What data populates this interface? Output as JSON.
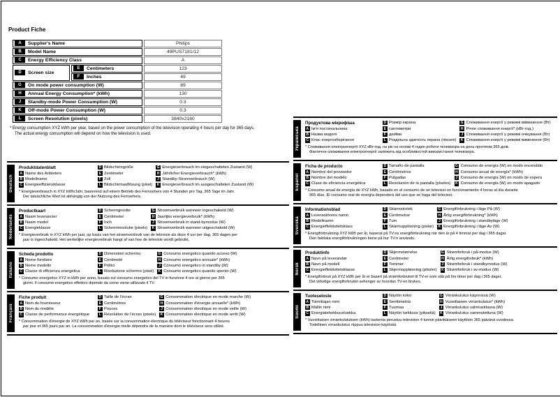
{
  "page": {
    "title": "Product Fiche"
  },
  "colors": {
    "ink": "#000000",
    "paper": "#ffffff",
    "badge_bg": "#000000",
    "badge_fg": "#ffffff",
    "value_border": "#7a7a7a"
  },
  "product_table": {
    "rows": [
      {
        "letter": "A",
        "label": "Supplier's Name",
        "value": "Philips"
      },
      {
        "letter": "B",
        "label": "Model Name",
        "value": "49PUS7181/12"
      },
      {
        "letter": "C",
        "label": "Energy Efficiency Class",
        "value": "A"
      },
      {
        "letter": "D",
        "label": "Screen size",
        "sub": [
          {
            "letter": "E",
            "label": "Centimeters",
            "value": "123"
          },
          {
            "letter": "F",
            "label": "Inches",
            "value": "49"
          }
        ]
      },
      {
        "letter": "G",
        "label": "On mode power consumption (W)",
        "value": "89"
      },
      {
        "letter": "H",
        "label": "Annual Energy Consumption* (kWh)",
        "value": "130"
      },
      {
        "letter": "J",
        "label": "Standby-mode Power Consumption (W)",
        "value": "0.3"
      },
      {
        "letter": "K",
        "label": "Off-mode Power Consumption (W)",
        "value": "0.3"
      },
      {
        "letter": "L",
        "label": "Screen Resolution (pixels)",
        "value": "3840x2160"
      }
    ]
  },
  "footnote": {
    "line1": "* Energy consumption XYZ kWh per year, based on the power consumption of the television operating 4 hours per day for 365 days.",
    "line2": "The actual energy consumption will depend on how the television is used."
  },
  "sections": {
    "left": [
      {
        "id": "deutsch",
        "lang": "Deutsch",
        "title": "Produktdatenblatt",
        "items_abc": [
          {
            "letter": "A",
            "label": "Name des Anbieters"
          },
          {
            "letter": "B",
            "label": "Modellname"
          },
          {
            "letter": "C",
            "label": "Energieeffizienzklasse"
          }
        ],
        "items_defl": [
          {
            "letter": "D",
            "label": "Bildschirmgröße"
          },
          {
            "letter": "E",
            "label": "Zentimeter"
          },
          {
            "letter": "F",
            "label": "Zoll"
          },
          {
            "letter": "L",
            "label": "Bildschirmauflösung (pixel)"
          }
        ],
        "items_ghjk": [
          {
            "letter": "G",
            "label": "Energieverbrauch im eingeschalteten Zustand (W)"
          },
          {
            "letter": "H",
            "label": "Jährlicher Energieverbrauch* (kWh)"
          },
          {
            "letter": "J",
            "label": "Standby-Stromverbrauch (W)"
          },
          {
            "letter": "K",
            "label": "Energieverbrauch im ausgeschalteten Zustand (W)"
          }
        ],
        "footnote": [
          "* Energieverbrauch in XYZ kWh/Jahr, basierend auf einem Betrieb des Fernsehers von 4 Stunden pro Tag, 365 Tage im Jahr.",
          "Der tatsächliche Wert ist abhängig von der Nutzung des Fernsehers."
        ]
      },
      {
        "id": "nederlands",
        "lang": "Nederlands",
        "title": "Productkaart",
        "items_abc": [
          {
            "letter": "A",
            "label": "Naam leverancier"
          },
          {
            "letter": "B",
            "label": "Naam model"
          },
          {
            "letter": "C",
            "label": "Energieklasse"
          }
        ],
        "items_defl": [
          {
            "letter": "D",
            "label": "Schermgrootte"
          },
          {
            "letter": "E",
            "label": "Centimeter"
          },
          {
            "letter": "F",
            "label": "Inch"
          },
          {
            "letter": "L",
            "label": "Schermresolutie (pixels)"
          }
        ],
        "items_ghjk": [
          {
            "letter": "G",
            "label": "Stroomverbruik wanneer ingeschakeld (W)"
          },
          {
            "letter": "H",
            "label": "Jaarlijks energieverbruik* (kWh)"
          },
          {
            "letter": "J",
            "label": "Stroomverbruik in stand-bymodus (W)"
          },
          {
            "letter": "K",
            "label": "Stroomverbruik wanneer uitgeschakeld (W)"
          }
        ],
        "footnote": [
          "* Energieverbruik in XYZ kWh per jaar, op basis van het stroomverbruik van de televisie als deze 4 uur per dag, 365 dagen per",
          "jaar is ingeschakeld. Het werkelijke energieverbruik hangt af van hoe de televisie wordt gebruikt."
        ]
      },
      {
        "id": "italiano",
        "lang": "Italiano",
        "title": "Scheda prodotto",
        "items_abc": [
          {
            "letter": "A",
            "label": "Nome fornitore"
          },
          {
            "letter": "B",
            "label": "Nome modello"
          },
          {
            "letter": "C",
            "label": "Classe di efficienza energetica"
          }
        ],
        "items_defl": [
          {
            "letter": "D",
            "label": "Dimensioni schermo"
          },
          {
            "letter": "E",
            "label": "Centimetri"
          },
          {
            "letter": "F",
            "label": "Pollici"
          },
          {
            "letter": "L",
            "label": "Risoluzione schermo (pixel)"
          }
        ],
        "items_ghjk": [
          {
            "letter": "G",
            "label": "Consumo energetico quando acceso (W)"
          },
          {
            "letter": "H",
            "label": "Consumo energetico annuale* (kWh)"
          },
          {
            "letter": "J",
            "label": "Consumo energetico in standby (W)"
          },
          {
            "letter": "K",
            "label": "Consumo energetico quando spento (W)"
          }
        ],
        "footnote": [
          "* Consumo energetico XYZ in kWh per anno, basato sul consumo energetico del TV in funzione 4 ore al giorno per 365",
          "giorni. Il consumo energetico effettivo dipende da come viene utilizzato il TV."
        ]
      },
      {
        "id": "francais",
        "lang": "Français",
        "title": "Fiche produit",
        "items_abc": [
          {
            "letter": "A",
            "label": "Nom du fournisseur"
          },
          {
            "letter": "B",
            "label": "Nom du modèle"
          },
          {
            "letter": "C",
            "label": "Classe de performance énergétique"
          }
        ],
        "items_defl": [
          {
            "letter": "D",
            "label": "Taille de l'écran"
          },
          {
            "letter": "E",
            "label": "Centimètres"
          },
          {
            "letter": "F",
            "label": "Pouces"
          },
          {
            "letter": "L",
            "label": "Résolution de l'écran (pixels)"
          }
        ],
        "items_ghjk": [
          {
            "letter": "G",
            "label": "Consommation électrique en mode marche (W)"
          },
          {
            "letter": "H",
            "label": "Consommation d'énergie annuelle* (kWh)"
          },
          {
            "letter": "J",
            "label": "Consommation électrique en mode veille (W)"
          },
          {
            "letter": "K",
            "label": "Consommation électrique en mode arrêt (W)"
          }
        ],
        "footnote": [
          "* Consommation d'énergie de XYZ kWh par an, basée sur la consommation électrique du téléviseur fonctionnant 4 heures",
          "par jour et 365 jours par an. La consommation d'énergie réelle dépendra de la manière dont le téléviseur sera utilisé."
        ]
      }
    ],
    "right": [
      {
        "id": "ukrainska",
        "lang": "Українська",
        "title": "Продуктова мікрофіша",
        "items_abc": [
          {
            "letter": "A",
            "label": "Ім'я постачальника"
          },
          {
            "letter": "B",
            "label": "Назва моделі"
          },
          {
            "letter": "C",
            "label": "Клас енергозберігання"
          }
        ],
        "items_defl": [
          {
            "letter": "D",
            "label": "Розмір екрана"
          },
          {
            "letter": "E",
            "label": "сантиметри"
          },
          {
            "letter": "F",
            "label": "дюйми"
          },
          {
            "letter": "L",
            "label": "Роздільна здатність екрана (пікселі)"
          }
        ],
        "items_ghjk": [
          {
            "letter": "G",
            "label": "Споживання енергії у режимі ввімкнення (Вт)"
          },
          {
            "letter": "H",
            "label": "Річне споживання енергії* (кВт-год.)"
          },
          {
            "letter": "J",
            "label": "Споживання енергії у режимі очікування (Вт)"
          },
          {
            "letter": "K",
            "label": "Споживання енергії у режимі вимкнення (Вт)"
          }
        ],
        "footnote": [
          "* Споживання електроенергії XYZ кВт-год. на рік на основі 4 годин роботи телевізора на день протягом 365 днів.",
          "Фактичне споживання електроенергії залежить від особливостей використання телевізора."
        ]
      },
      {
        "id": "espanol",
        "lang": "Español",
        "title": "Ficha de producto",
        "items_abc": [
          {
            "letter": "A",
            "label": "Nombre del proveedor"
          },
          {
            "letter": "B",
            "label": "Nombre del modelo"
          },
          {
            "letter": "C",
            "label": "Clase de eficiencia energética"
          }
        ],
        "items_defl": [
          {
            "letter": "D",
            "label": "Tamaño de pantalla"
          },
          {
            "letter": "E",
            "label": "Centímetros"
          },
          {
            "letter": "F",
            "label": "Pulgadas"
          },
          {
            "letter": "L",
            "label": "Resolución de la pantalla (píxeles)"
          }
        ],
        "items_ghjk": [
          {
            "letter": "G",
            "label": "Consumo de energía (W) en modo encendido"
          },
          {
            "letter": "H",
            "label": "Consumo anual de energía* (kWh)"
          },
          {
            "letter": "J",
            "label": "Consumo de energía (W) en modo de espera"
          },
          {
            "letter": "K",
            "label": "Consumo de energía (W) en modo apagado"
          }
        ],
        "footnote": [
          "* Consumo anual de energía de XYZ kWh, basado en el consumo de un televisor en funcionamiento 4 horas al día durante",
          "365 días. El consumo real de energía dependerá del uso que se haga del televisor."
        ]
      },
      {
        "id": "svenska",
        "lang": "Svenska",
        "title": "Informationsblad",
        "items_abc": [
          {
            "letter": "A",
            "label": "Leverantörens namn"
          },
          {
            "letter": "B",
            "label": "Modellnamn"
          },
          {
            "letter": "C",
            "label": "Energieffektivitetsklass"
          }
        ],
        "items_defl": [
          {
            "letter": "D",
            "label": "Skärmstorlek"
          },
          {
            "letter": "E",
            "label": "Centimetrar"
          },
          {
            "letter": "F",
            "label": "Tum"
          },
          {
            "letter": "L",
            "label": "Skärmupplösning (pixlar)"
          }
        ],
        "items_ghjk": [
          {
            "letter": "G",
            "label": "Energiförbrukning i läge På (W)"
          },
          {
            "letter": "H",
            "label": "Årlig energiförbrukning* (kWh)"
          },
          {
            "letter": "J",
            "label": "Energiförbrukning i standbyläge (W)"
          },
          {
            "letter": "K",
            "label": "Energiförbrukning i läge Av (W)"
          }
        ],
        "footnote": [
          "* Energiförbrukning XYZ kWh per år, baserat på TV:ns energiförbrukning när den är på 4 timmar per dag i 365 dagar.",
          "Den faktiska energiförbrukningen beror på hur TV:n används."
        ]
      },
      {
        "id": "norsk",
        "lang": "Norsk",
        "title": "Produktinfo",
        "items_abc": [
          {
            "letter": "A",
            "label": "Navn på leverandør"
          },
          {
            "letter": "B",
            "label": "Navn på modell"
          },
          {
            "letter": "C",
            "label": "Energieffektivitetsklasse"
          }
        ],
        "items_defl": [
          {
            "letter": "D",
            "label": "Skjermstørrelse"
          },
          {
            "letter": "E",
            "label": "Centimeter"
          },
          {
            "letter": "F",
            "label": "Tommer"
          },
          {
            "letter": "L",
            "label": "Skjermoppløsning (piksler)"
          }
        ],
        "items_ghjk": [
          {
            "letter": "G",
            "label": "Strømforbruk i på-modus (W)"
          },
          {
            "letter": "H",
            "label": "Årlig energiforbruk* (kWh)"
          },
          {
            "letter": "J",
            "label": "Strømforbruk i standbymodus (W)"
          },
          {
            "letter": "K",
            "label": "Strømforbruk i av-modus (W)"
          }
        ],
        "footnote": [
          "* Energiforbruk på XYZ kWh per år er basert på strømforbruket til TV-er som står på fire timer per dag i 365 dager.",
          "Det virkelige energiforbruket avhenger av hvordan TV-en brukes."
        ]
      },
      {
        "id": "suomi",
        "lang": "Suomi",
        "title": "Tuoteseloste",
        "items_abc": [
          {
            "letter": "A",
            "label": "Toimittajan nimi"
          },
          {
            "letter": "B",
            "label": "Mallin nimi"
          },
          {
            "letter": "C",
            "label": "Energiatehokkuusluokka"
          }
        ],
        "items_defl": [
          {
            "letter": "D",
            "label": "Näytön koko"
          },
          {
            "letter": "E",
            "label": "Senttimetriä"
          },
          {
            "letter": "F",
            "label": "Tuumaa"
          },
          {
            "letter": "L",
            "label": "Näytön tarkkuus (pikseliä)"
          }
        ],
        "items_ghjk": [
          {
            "letter": "G",
            "label": "Virrankulutus käynnissä (W)"
          },
          {
            "letter": "H",
            "label": "Vuosittainen virrankulutus* (kWh)"
          },
          {
            "letter": "J",
            "label": "Virrankulutus valmiustilassa (W)"
          },
          {
            "letter": "K",
            "label": "Virrankulutus sammutettuna (W)"
          }
        ],
        "footnote": [
          "* Vuosittaisen virrankulutuksen (kWh) laskenta perustuu television 4 tunnin päivittäiseen käyttöön 365 päivänä vuodessa.",
          "Todellinen virrankulutus riippuu television käytöstä."
        ]
      }
    ]
  }
}
